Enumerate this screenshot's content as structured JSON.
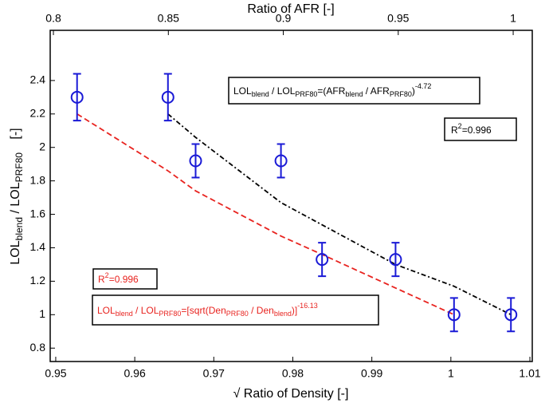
{
  "chart_data": {
    "type": "scatter",
    "x_label": "√ Ratio of Density [-]",
    "x2_label": "Ratio of AFR [-]",
    "y_label": [
      "LOL",
      "blend",
      " / LOL",
      "PRF80",
      " [-]"
    ],
    "xlim": [
      0.9493,
      1.0103
    ],
    "xticks": [
      0.95,
      0.96,
      0.97,
      0.98,
      0.99,
      1,
      1.01
    ],
    "x2lim": [
      0.7986,
      1.0083
    ],
    "x2ticks": [
      0.8,
      0.85,
      0.9,
      0.95,
      1
    ],
    "ylim": [
      0.72,
      2.7
    ],
    "yticks": [
      0.8,
      1,
      1.2,
      1.4,
      1.6,
      1.8,
      2,
      2.2,
      2.4
    ],
    "series": [
      {
        "color": "#1a1ad6",
        "x": [
          0.9527,
          0.9642,
          0.9677,
          0.9785,
          0.9837,
          0.993,
          1.0004,
          1.0076
        ],
        "values": [
          2.3,
          2.3,
          1.92,
          1.92,
          1.33,
          1.33,
          1.0,
          1.0
        ],
        "errors": [
          0.14,
          0.14,
          0.1,
          0.1,
          0.1,
          0.1,
          0.1,
          0.1
        ]
      },
      {
        "color": "#e8231f",
        "x": [
          0.9527,
          0.9642,
          0.9677,
          0.9785,
          0.9837,
          1.0004
        ],
        "values": [
          2.2,
          1.86,
          1.74,
          1.47,
          1.36,
          1.0
        ]
      },
      {
        "color": "#000000",
        "x": [
          0.9642,
          0.9677,
          0.9785,
          0.993,
          1.0004,
          1.0076
        ],
        "values": [
          2.2,
          2.06,
          1.67,
          1.3,
          1.17,
          1.0
        ]
      }
    ],
    "annotations": [
      {
        "color": "#000000",
        "segments": [
          "LOL",
          "blend",
          " / LOL",
          "PRF80",
          "=(AFR",
          "blend",
          " / AFR",
          "PRF80",
          ")",
          "-4.72"
        ]
      },
      {
        "color": "#000000",
        "segments": [
          "R",
          "2",
          "=0.996"
        ]
      },
      {
        "color": "#e8231f",
        "segments": [
          "R",
          "2",
          "=0.996"
        ]
      },
      {
        "color": "#e8231f",
        "segments": [
          "LOL",
          "blend",
          " / LOL",
          "PRF80",
          "=[sqrt(Den",
          "PRF80",
          " / Den",
          "blend",
          ")]",
          "-16.13"
        ]
      }
    ]
  }
}
